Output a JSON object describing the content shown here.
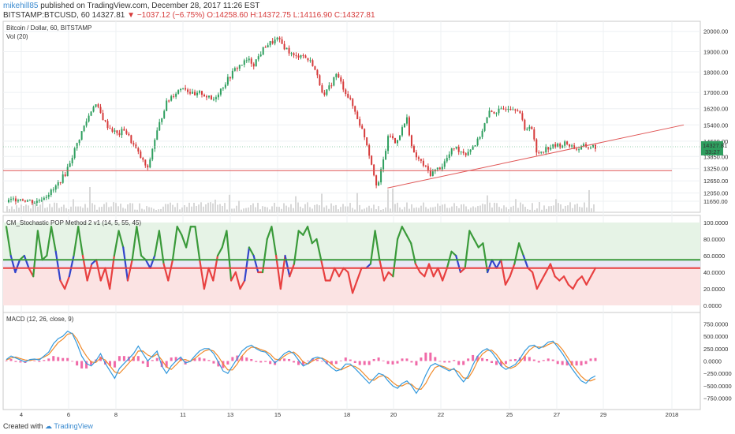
{
  "header": {
    "user": "mikehill85",
    "published": "published on TradingView.com, December 28, 2017 11:26 EST",
    "symbol": "BITSTAMP:BTCUSD, 60",
    "last": "14327.81",
    "change": "−1037.12 (−6.75%)",
    "ohlc": "O:14258.60 H:14372.75 L:14116.90 C:14327.81"
  },
  "footer": {
    "created_with": "Created with",
    "brand": "TradingView"
  },
  "colors": {
    "up": "#2e9e5e",
    "down": "#d63a3a",
    "trend": "#e05555",
    "stoch_green": "#3a9a3a",
    "stoch_red": "#e84040",
    "stoch_blue": "#3344cc",
    "macd": "#3399dd",
    "signal": "#f08a2a",
    "hist": "#f06aa8"
  },
  "chart_data": [
    {
      "type": "candlestick",
      "title": "Bitcoin / Dollar, 60, BITSTAMP",
      "subtitle": "Vol (20)",
      "x_ticks": [
        "4",
        "6",
        "8",
        "11",
        "13",
        "15",
        "18",
        "20",
        "22",
        "25",
        "27",
        "29",
        "2018"
      ],
      "y_ticks": [
        "20000.00",
        "19000.00",
        "18000.00",
        "17000.00",
        "16200.00",
        "15400.00",
        "14600.00",
        "13850.00",
        "13250.00",
        "12650.00",
        "12050.00",
        "11650.00"
      ],
      "ylim": [
        11300,
        20300
      ],
      "price_label": "14327.81",
      "price_sub": "33:27",
      "path_x": [
        0,
        0.02,
        0.05,
        0.08,
        0.1,
        0.13,
        0.15,
        0.17,
        0.19,
        0.2,
        0.22,
        0.24,
        0.25,
        0.27,
        0.28,
        0.3,
        0.32,
        0.33,
        0.35,
        0.37,
        0.39,
        0.41,
        0.42,
        0.44,
        0.46,
        0.48,
        0.49,
        0.5,
        0.52,
        0.54,
        0.56,
        0.58,
        0.59,
        0.61,
        0.63,
        0.65,
        0.66,
        0.68,
        0.69,
        0.7,
        0.72,
        0.74,
        0.76,
        0.78,
        0.8,
        0.82,
        0.84,
        0.85,
        0.87,
        0.88,
        0.89,
        0.9,
        0.92,
        0.94,
        0.95,
        0.97,
        0.98,
        1.0
      ],
      "path_y": [
        11600,
        11800,
        11600,
        12200,
        13000,
        15200,
        16500,
        15400,
        14900,
        15200,
        14200,
        13200,
        14500,
        16400,
        16800,
        17300,
        16800,
        17000,
        16600,
        17400,
        18200,
        18600,
        18400,
        19300,
        19600,
        19000,
        18700,
        18900,
        18400,
        16800,
        17900,
        16800,
        16200,
        14700,
        12300,
        15000,
        14500,
        15700,
        14000,
        13700,
        13000,
        13400,
        14300,
        14000,
        14600,
        16000,
        16100,
        16300,
        16200,
        15100,
        15500,
        14000,
        14300,
        14400,
        14500,
        14200,
        14330,
        14327
      ],
      "support_level": 13150,
      "trendline": [
        [
          0.647,
          12300
        ],
        [
          1.15,
          15400
        ]
      ]
    },
    {
      "type": "line",
      "title": "CM_Stochastic POP Method 2 v1 (14, 5, 55, 45)",
      "y_ticks": [
        "100.0000",
        "80.0000",
        "60.0000",
        "40.0000",
        "20.0000",
        "0.0000"
      ],
      "ylim": [
        0,
        100
      ],
      "upper_level": 55,
      "lower_level": 45,
      "series": [
        {
          "values": [
            95,
            60,
            40,
            55,
            60,
            45,
            35,
            90,
            55,
            60,
            95,
            65,
            30,
            20,
            35,
            60,
            95,
            60,
            30,
            50,
            55,
            30,
            45,
            20,
            60,
            90,
            70,
            30,
            55,
            95,
            60,
            55,
            45,
            60,
            90,
            50,
            30,
            55,
            95,
            85,
            70,
            95,
            95,
            55,
            20,
            45,
            30,
            60,
            70,
            90,
            30,
            40,
            20,
            30,
            70,
            60,
            40,
            40,
            80,
            95,
            60,
            20,
            60,
            35,
            50,
            90,
            85,
            95,
            75,
            80,
            55,
            30,
            30,
            45,
            35,
            45,
            40,
            15,
            30,
            45,
            45,
            50,
            90,
            55,
            30,
            40,
            35,
            80,
            95,
            85,
            75,
            50,
            40,
            35,
            50,
            35,
            45,
            30,
            45,
            65,
            60,
            40,
            45,
            90,
            80,
            70,
            75,
            40,
            55,
            45,
            55,
            25,
            35,
            50,
            75,
            60,
            45,
            40,
            20,
            30,
            40,
            50,
            35,
            30,
            35,
            25,
            20,
            30,
            35,
            25,
            35,
            45
          ]
        }
      ]
    },
    {
      "type": "line",
      "title": "MACD (12, 26, close, 9)",
      "y_ticks": [
        "750.0000",
        "500.0000",
        "250.0000",
        "0.0000",
        "−250.0000",
        "−500.0000",
        "−750.0000"
      ],
      "ylim": [
        -850,
        850
      ],
      "series": [
        {
          "values": [
            30,
            100,
            60,
            20,
            -20,
            30,
            40,
            20,
            100,
            180,
            350,
            450,
            500,
            600,
            550,
            350,
            100,
            -50,
            -100,
            0,
            150,
            -50,
            -200,
            -350,
            -150,
            -50,
            50,
            150,
            300,
            150,
            0,
            100,
            200,
            -100,
            -250,
            -100,
            0,
            80,
            -40,
            -10,
            100,
            200,
            250,
            250,
            150,
            -20,
            -200,
            -250,
            -100,
            50,
            200,
            280,
            320,
            250,
            200,
            180,
            80,
            -40,
            50,
            150,
            200,
            150,
            20,
            -100,
            -50,
            50,
            80,
            50,
            -50,
            -130,
            -200,
            -170,
            -60,
            -60,
            -150,
            -250,
            -350,
            -450,
            -350,
            -250,
            -280,
            -400,
            -500,
            -550,
            -450,
            -400,
            -500,
            -650,
            -500,
            -280,
            -100,
            -50,
            -100,
            -150,
            -200,
            -150,
            -300,
            -420,
            -300,
            -80,
            100,
            200,
            250,
            180,
            50,
            -100,
            -170,
            -120,
            -70,
            50,
            200,
            300,
            320,
            250,
            300,
            380,
            400,
            280,
            150,
            0,
            -150,
            -280,
            -400,
            -450,
            -350,
            -300
          ]
        },
        {
          "values": [
            20,
            60,
            80,
            50,
            20,
            10,
            30,
            40,
            80,
            130,
            250,
            370,
            440,
            540,
            560,
            440,
            250,
            100,
            -20,
            -30,
            60,
            20,
            -100,
            -220,
            -250,
            -150,
            -40,
            60,
            200,
            200,
            120,
            80,
            140,
            20,
            -120,
            -170,
            -80,
            20,
            30,
            -10,
            50,
            130,
            200,
            230,
            200,
            90,
            -60,
            -180,
            -180,
            -60,
            100,
            210,
            280,
            270,
            230,
            200,
            140,
            40,
            20,
            100,
            160,
            180,
            100,
            -20,
            -60,
            0,
            50,
            60,
            10,
            -60,
            -140,
            -180,
            -130,
            -90,
            -110,
            -170,
            -270,
            -370,
            -390,
            -320,
            -290,
            -340,
            -430,
            -500,
            -500,
            -450,
            -470,
            -560,
            -570,
            -450,
            -270,
            -130,
            -90,
            -120,
            -170,
            -170,
            -220,
            -340,
            -350,
            -200,
            0,
            140,
            210,
            220,
            130,
            0,
            -110,
            -150,
            -110,
            -20,
            100,
            220,
            290,
            280,
            280,
            330,
            370,
            340,
            230,
            90,
            -60,
            -190,
            -310,
            -390,
            -400,
            -360
          ]
        },
        {
          "values": [
            10,
            40,
            -20,
            -30,
            -40,
            20,
            10,
            -20,
            20,
            50,
            100,
            80,
            60,
            60,
            -10,
            -90,
            -150,
            -150,
            -80,
            30,
            90,
            -70,
            -100,
            -130,
            100,
            100,
            90,
            90,
            100,
            -50,
            -120,
            20,
            60,
            -120,
            -130,
            70,
            80,
            60,
            -70,
            0,
            50,
            70,
            50,
            20,
            -50,
            -110,
            -140,
            -70,
            80,
            110,
            100,
            70,
            40,
            -20,
            -30,
            -20,
            -60,
            -80,
            30,
            50,
            40,
            -30,
            -80,
            -80,
            10,
            50,
            30,
            -10,
            -60,
            -70,
            -60,
            10,
            70,
            30,
            -40,
            -80,
            -80,
            -80,
            40,
            70,
            10,
            -60,
            -70,
            -50,
            50,
            50,
            -30,
            -90,
            70,
            170,
            170,
            80,
            -10,
            -30,
            -30,
            20,
            -80,
            -80,
            50,
            120,
            100,
            60,
            40,
            -40,
            -80,
            -100,
            -60,
            30,
            40,
            70,
            100,
            80,
            30,
            -30,
            20,
            50,
            30,
            -60,
            -80,
            -90,
            -90,
            -90,
            -90,
            -60,
            50,
            60
          ]
        }
      ]
    }
  ]
}
